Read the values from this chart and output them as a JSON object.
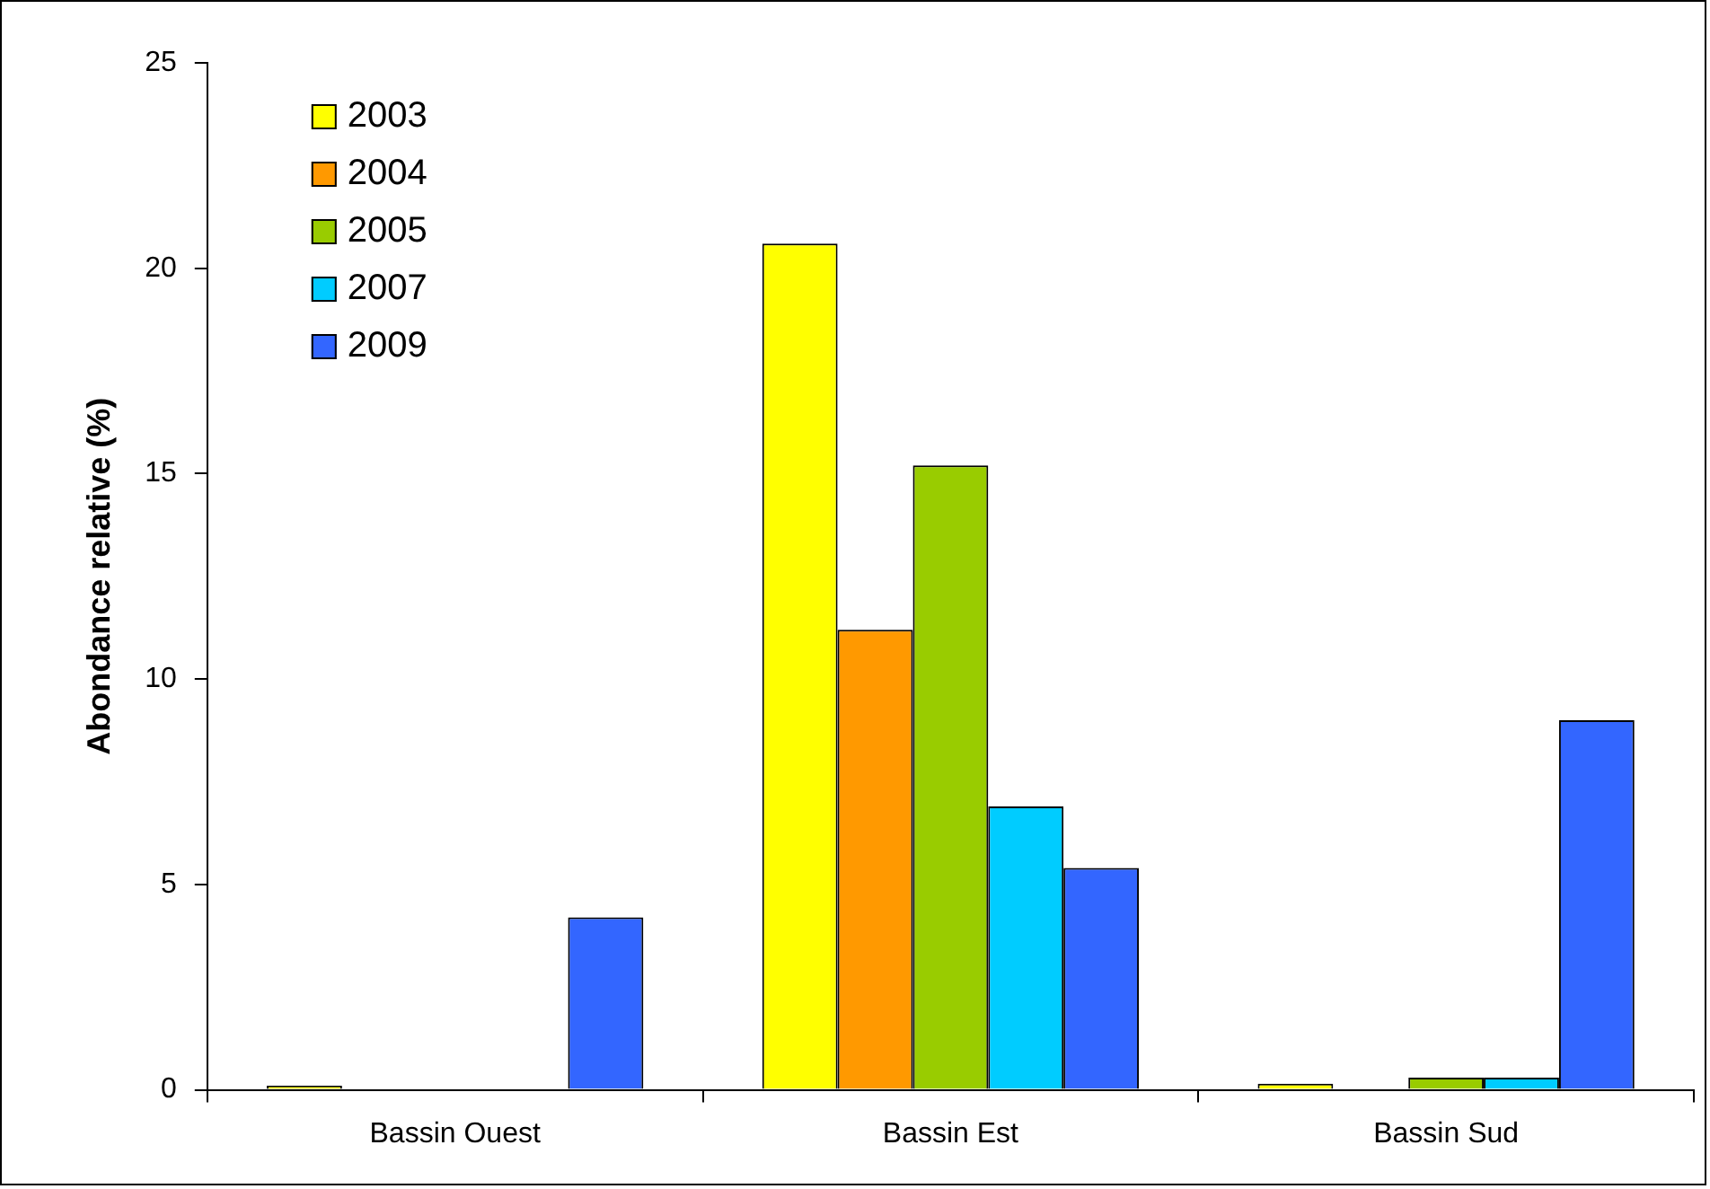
{
  "chart_data": {
    "type": "bar",
    "ylabel": "Abondance relative (%)",
    "categories": [
      "Bassin Ouest",
      "Bassin Est",
      "Bassin Sud"
    ],
    "series": [
      {
        "name": "2003",
        "color": "#ffff00",
        "values": [
          0.1,
          20.6,
          0.15
        ]
      },
      {
        "name": "2004",
        "color": "#ff9900",
        "values": [
          0,
          11.2,
          0
        ]
      },
      {
        "name": "2005",
        "color": "#99cc00",
        "values": [
          0,
          15.2,
          0.3
        ]
      },
      {
        "name": "2007",
        "color": "#00ccff",
        "values": [
          0,
          6.9,
          0.3
        ]
      },
      {
        "name": "2009",
        "color": "#3366ff",
        "values": [
          4.2,
          5.4,
          9.0
        ]
      }
    ],
    "ylim": [
      0,
      25
    ],
    "yticks": [
      0,
      5,
      10,
      15,
      20,
      25
    ],
    "grid": false,
    "legend": "top left"
  }
}
